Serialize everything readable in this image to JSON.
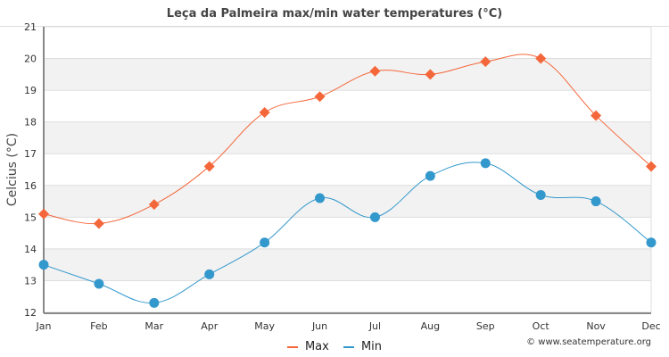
{
  "chart_data": {
    "type": "line",
    "title": "Leça da Palmeira max/min water temperatures (°C)",
    "xlabel": "",
    "ylabel": "Celcius (°C)",
    "categories": [
      "Jan",
      "Feb",
      "Mar",
      "Apr",
      "May",
      "Jun",
      "Jul",
      "Aug",
      "Sep",
      "Oct",
      "Nov",
      "Dec"
    ],
    "ylim": [
      12,
      21
    ],
    "yticks": [
      12,
      13,
      14,
      15,
      16,
      17,
      18,
      19,
      20,
      21
    ],
    "grid": true,
    "legend_position": "bottom-center",
    "series": [
      {
        "name": "Max",
        "color": "#f4673a",
        "marker": "diamond",
        "values": [
          15.1,
          14.8,
          15.4,
          16.6,
          18.3,
          18.8,
          19.6,
          19.5,
          19.9,
          20.0,
          18.2,
          16.6
        ]
      },
      {
        "name": "Min",
        "color": "#3398cc",
        "marker": "circle",
        "values": [
          13.5,
          12.9,
          12.3,
          13.2,
          14.2,
          15.6,
          15.0,
          16.3,
          16.7,
          15.7,
          15.5,
          14.2
        ]
      }
    ]
  },
  "legend": {
    "max_label": "Max",
    "min_label": "Min"
  },
  "credit": "© www.seatemperature.org"
}
